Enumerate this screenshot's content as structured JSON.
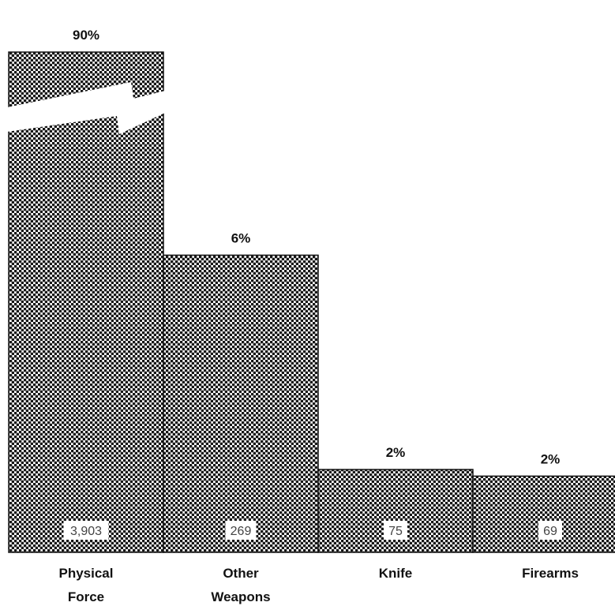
{
  "chart_data": {
    "type": "bar",
    "categories": [
      "Physical Force",
      "Other Weapons",
      "Knife",
      "Firearms"
    ],
    "category_lines": [
      [
        "Physical",
        "Force"
      ],
      [
        "Other",
        "Weapons"
      ],
      [
        "Knife"
      ],
      [
        "Firearms"
      ]
    ],
    "values": [
      3903,
      269,
      75,
      69
    ],
    "value_labels": [
      "3,903",
      "269",
      "75",
      "69"
    ],
    "percent_labels": [
      "90%",
      "6%",
      "2%",
      "2%"
    ],
    "broken_bar": "Physical Force",
    "title": "",
    "xlabel": "",
    "ylabel": "",
    "bar_style": "halftone dot pattern"
  }
}
